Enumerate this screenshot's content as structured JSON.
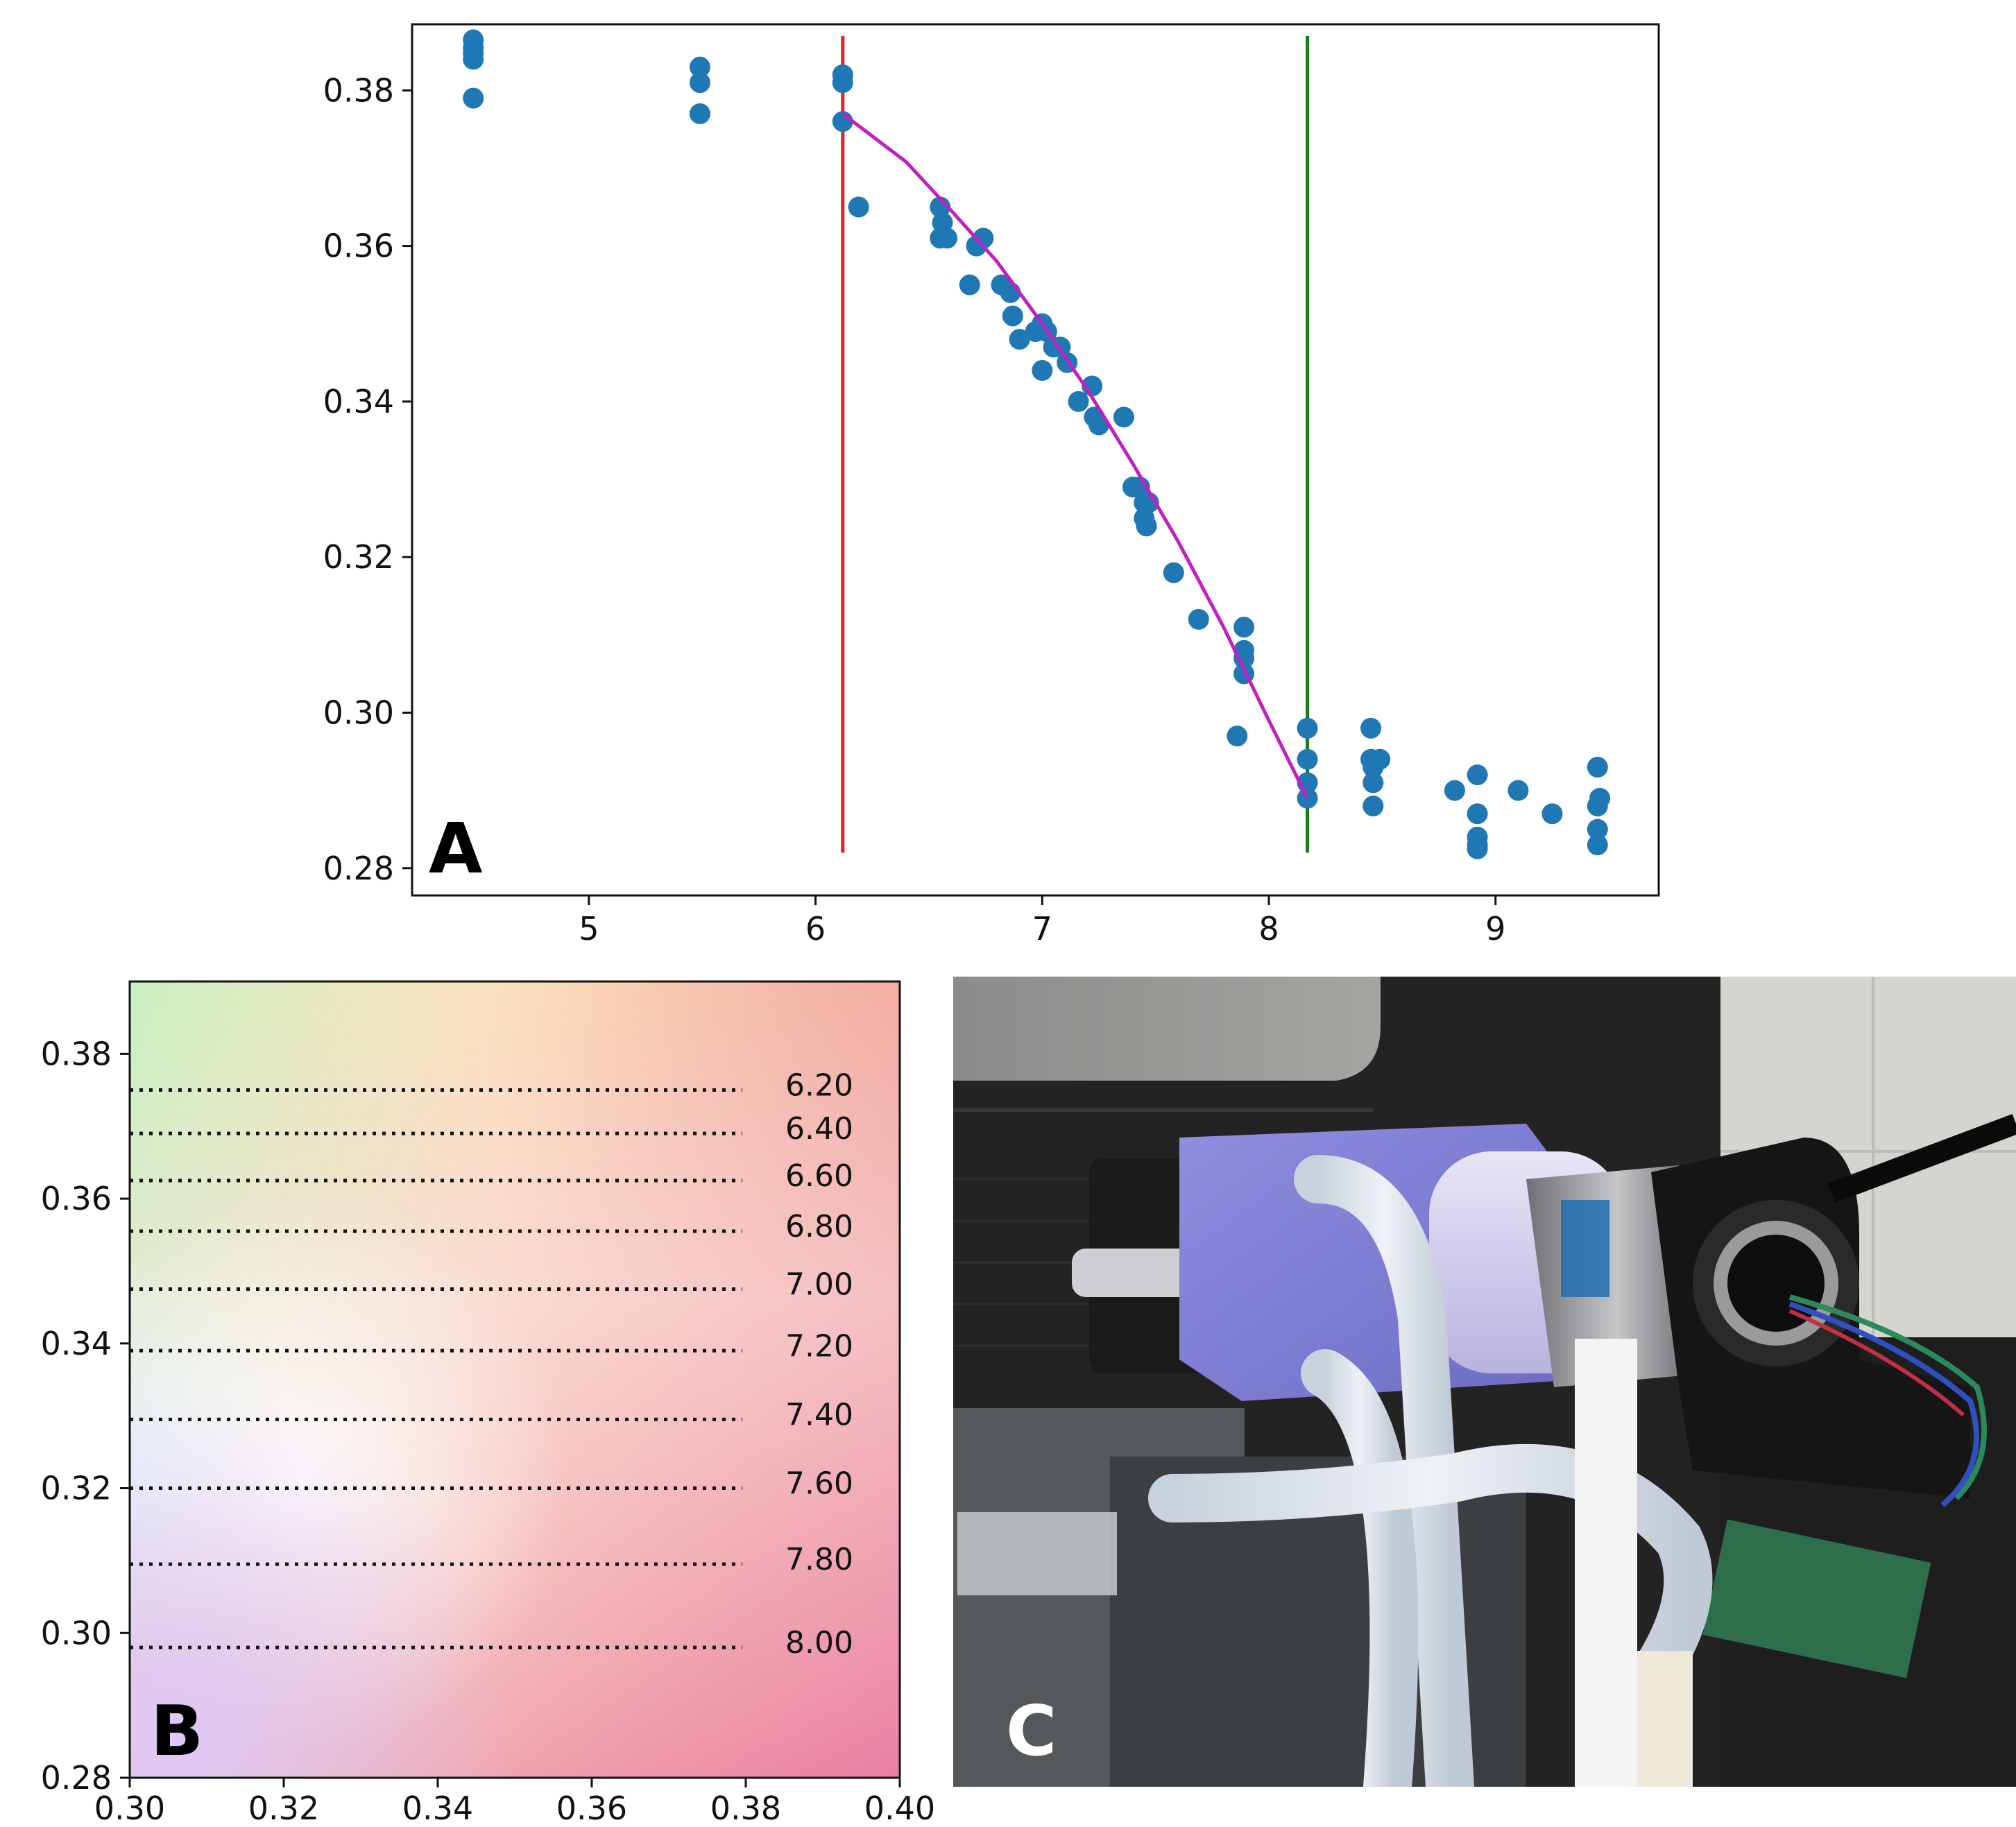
{
  "panels": {
    "a": {
      "letter": "A"
    },
    "b": {
      "letter": "B"
    },
    "c": {
      "letter": "C"
    }
  },
  "colors": {
    "points": "#1f77b4",
    "fit_curve": "#c020c0",
    "red_line": "#e8202a",
    "green_line": "#1a7a1a"
  },
  "chart_data": [
    {
      "type": "scatter",
      "title": "",
      "xlabel": "",
      "ylabel": "",
      "xlim": [
        4.22,
        9.72
      ],
      "ylim": [
        0.2765,
        0.3885
      ],
      "xticks": [
        5,
        6,
        7,
        8,
        9
      ],
      "xtick_labels": [
        "5",
        "6",
        "7",
        "8",
        "9"
      ],
      "yticks": [
        0.28,
        0.3,
        0.32,
        0.34,
        0.36,
        0.38
      ],
      "ytick_labels": [
        "0.28",
        "0.30",
        "0.32",
        "0.34",
        "0.36",
        "0.38"
      ],
      "grid": false,
      "points": [
        [
          4.49,
          0.3865
        ],
        [
          4.49,
          0.3855
        ],
        [
          4.49,
          0.3848
        ],
        [
          4.49,
          0.384
        ],
        [
          4.49,
          0.379
        ],
        [
          5.49,
          0.383
        ],
        [
          5.49,
          0.381
        ],
        [
          5.49,
          0.377
        ],
        [
          6.12,
          0.382
        ],
        [
          6.12,
          0.381
        ],
        [
          6.12,
          0.376
        ],
        [
          6.19,
          0.365
        ],
        [
          6.55,
          0.365
        ],
        [
          6.56,
          0.363
        ],
        [
          6.55,
          0.361
        ],
        [
          6.58,
          0.361
        ],
        [
          6.68,
          0.355
        ],
        [
          6.71,
          0.36
        ],
        [
          6.74,
          0.361
        ],
        [
          6.82,
          0.355
        ],
        [
          6.86,
          0.354
        ],
        [
          6.87,
          0.351
        ],
        [
          6.9,
          0.348
        ],
        [
          6.97,
          0.349
        ],
        [
          7.0,
          0.35
        ],
        [
          7.02,
          0.349
        ],
        [
          7.0,
          0.344
        ],
        [
          7.05,
          0.347
        ],
        [
          7.08,
          0.347
        ],
        [
          7.11,
          0.345
        ],
        [
          7.16,
          0.34
        ],
        [
          7.22,
          0.342
        ],
        [
          7.23,
          0.338
        ],
        [
          7.25,
          0.337
        ],
        [
          7.36,
          0.338
        ],
        [
          7.4,
          0.329
        ],
        [
          7.43,
          0.329
        ],
        [
          7.45,
          0.327
        ],
        [
          7.47,
          0.327
        ],
        [
          7.45,
          0.325
        ],
        [
          7.46,
          0.324
        ],
        [
          7.58,
          0.318
        ],
        [
          7.69,
          0.312
        ],
        [
          7.86,
          0.297
        ],
        [
          7.89,
          0.311
        ],
        [
          7.89,
          0.308
        ],
        [
          7.89,
          0.307
        ],
        [
          7.89,
          0.305
        ],
        [
          8.17,
          0.298
        ],
        [
          8.17,
          0.294
        ],
        [
          8.17,
          0.291
        ],
        [
          8.17,
          0.289
        ],
        [
          8.45,
          0.298
        ],
        [
          8.45,
          0.294
        ],
        [
          8.46,
          0.293
        ],
        [
          8.46,
          0.291
        ],
        [
          8.49,
          0.294
        ],
        [
          8.46,
          0.288
        ],
        [
          8.82,
          0.29
        ],
        [
          8.92,
          0.292
        ],
        [
          8.92,
          0.287
        ],
        [
          8.92,
          0.284
        ],
        [
          8.92,
          0.283
        ],
        [
          8.92,
          0.2825
        ],
        [
          9.1,
          0.29
        ],
        [
          9.25,
          0.287
        ],
        [
          9.45,
          0.293
        ],
        [
          9.46,
          0.289
        ],
        [
          9.45,
          0.288
        ],
        [
          9.45,
          0.285
        ],
        [
          9.45,
          0.283
        ]
      ],
      "fit_curve": {
        "x": [
          6.12,
          6.4,
          6.6,
          6.8,
          7.0,
          7.2,
          7.4,
          7.6,
          7.8,
          8.0,
          8.17
        ],
        "y": [
          0.377,
          0.3708,
          0.3645,
          0.358,
          0.35,
          0.3415,
          0.332,
          0.322,
          0.311,
          0.299,
          0.289
        ]
      },
      "vertical_lines": [
        {
          "x": 6.12,
          "color": "red",
          "y_range": [
            0.282,
            0.387
          ]
        },
        {
          "x": 8.17,
          "color": "green",
          "y_range": [
            0.282,
            0.387
          ]
        }
      ]
    },
    {
      "type": "heatmap",
      "title": "",
      "xlabel": "",
      "ylabel": "",
      "xlim": [
        0.3,
        0.4
      ],
      "ylim": [
        0.28,
        0.39
      ],
      "xticks": [
        0.3,
        0.32,
        0.34,
        0.36,
        0.38,
        0.4
      ],
      "xtick_labels": [
        "0.30",
        "0.32",
        "0.34",
        "0.36",
        "0.38",
        "0.40"
      ],
      "yticks": [
        0.28,
        0.3,
        0.32,
        0.34,
        0.36,
        0.38
      ],
      "ytick_labels": [
        "0.28",
        "0.30",
        "0.32",
        "0.34",
        "0.36",
        "0.38"
      ],
      "grid": false,
      "levels": [
        {
          "label": "6.20",
          "y": 0.375
        },
        {
          "label": "6.40",
          "y": 0.369
        },
        {
          "label": "6.60",
          "y": 0.3625
        },
        {
          "label": "6.80",
          "y": 0.3555
        },
        {
          "label": "7.00",
          "y": 0.3475
        },
        {
          "label": "7.20",
          "y": 0.339
        },
        {
          "label": "7.40",
          "y": 0.3295
        },
        {
          "label": "7.60",
          "y": 0.32
        },
        {
          "label": "7.80",
          "y": 0.3095
        },
        {
          "label": "8.00",
          "y": 0.298
        }
      ],
      "background_colors": {
        "top_left": "#c8f0c0",
        "top_middle": "#fff8c8",
        "top_right": "#f6c690",
        "middle_left": "#e6f8ff",
        "center": "#f6e0e6",
        "bottom_left": "#e8ccf4",
        "bottom_right": "#ec88a8"
      }
    }
  ]
}
